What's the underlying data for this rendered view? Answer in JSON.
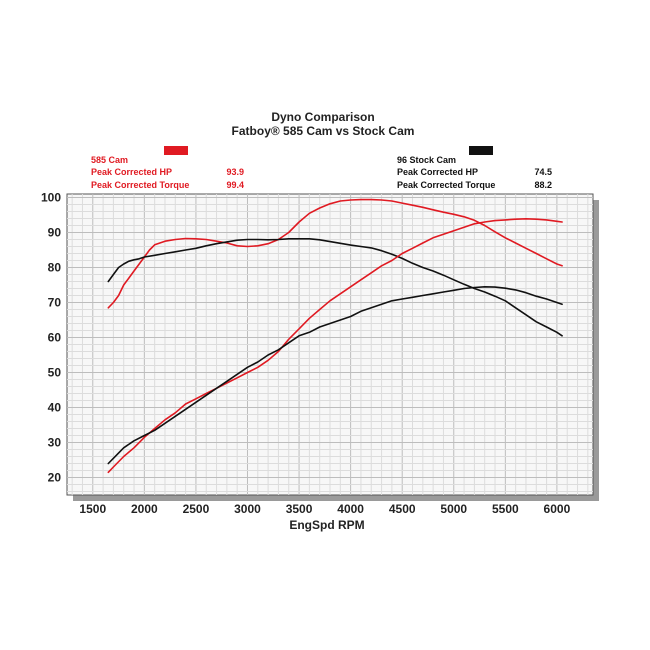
{
  "chart_data": {
    "type": "line",
    "title": "Dyno Comparison",
    "subtitle": "Fatboy® 585 Cam vs Stock Cam",
    "xlabel": "EngSpd RPM",
    "ylabel": "",
    "xlim": [
      1250,
      6350
    ],
    "ylim": [
      15,
      101
    ],
    "x_ticks": [
      1500,
      2000,
      2500,
      3000,
      3500,
      4000,
      4500,
      5000,
      5500,
      6000
    ],
    "y_ticks": [
      20,
      30,
      40,
      50,
      60,
      70,
      80,
      90,
      100
    ],
    "grid": true,
    "legend": {
      "cam": {
        "name": "585 Cam",
        "color": "#e01a22",
        "hp_label": "Peak Corrected HP",
        "hp_value": "93.9",
        "torque_label": "Peak Corrected Torque",
        "torque_value": "99.4"
      },
      "stock": {
        "name": "96 Stock Cam",
        "color": "#111111",
        "hp_label": "Peak Corrected HP",
        "hp_value": "74.5",
        "torque_label": "Peak Corrected Torque",
        "torque_value": "88.2"
      }
    },
    "series": [
      {
        "name": "585 Cam Torque",
        "color": "#e01a22",
        "x": [
          1650,
          1700,
          1750,
          1800,
          1850,
          1900,
          1950,
          2000,
          2050,
          2100,
          2200,
          2300,
          2400,
          2500,
          2600,
          2700,
          2800,
          2900,
          3000,
          3100,
          3200,
          3300,
          3400,
          3500,
          3600,
          3700,
          3800,
          3900,
          4000,
          4100,
          4200,
          4300,
          4400,
          4500,
          4600,
          4700,
          4800,
          4900,
          5000,
          5100,
          5200,
          5300,
          5400,
          5500,
          5600,
          5700,
          5800,
          5900,
          6000,
          6050
        ],
        "y": [
          68.5,
          70,
          72,
          75,
          77,
          79,
          81,
          83,
          85,
          86.5,
          87.5,
          88,
          88.3,
          88.2,
          88,
          87.5,
          87,
          86.2,
          86,
          86.2,
          86.8,
          88,
          90,
          93,
          95.5,
          97,
          98.2,
          99,
          99.3,
          99.4,
          99.4,
          99.3,
          99,
          98.4,
          97.8,
          97.2,
          96.5,
          95.8,
          95.2,
          94.5,
          93.5,
          92,
          90.2,
          88.5,
          87,
          85.5,
          84,
          82.5,
          81,
          80.5
        ]
      },
      {
        "name": "96 Stock Cam Torque",
        "color": "#111111",
        "x": [
          1650,
          1700,
          1750,
          1800,
          1850,
          1900,
          1950,
          2000,
          2100,
          2200,
          2300,
          2400,
          2500,
          2600,
          2700,
          2800,
          2900,
          3000,
          3100,
          3200,
          3300,
          3400,
          3500,
          3600,
          3700,
          3800,
          3900,
          4000,
          4100,
          4200,
          4300,
          4400,
          4500,
          4600,
          4700,
          4800,
          4900,
          5000,
          5100,
          5200,
          5300,
          5400,
          5500,
          5600,
          5700,
          5800,
          5900,
          6000,
          6050
        ],
        "y": [
          76,
          78,
          80,
          81,
          81.8,
          82.2,
          82.5,
          83,
          83.5,
          84,
          84.5,
          85,
          85.5,
          86.2,
          86.8,
          87.3,
          87.8,
          88,
          88,
          87.9,
          88,
          88.2,
          88.2,
          88.2,
          87.9,
          87.4,
          86.9,
          86.4,
          86,
          85.6,
          84.8,
          83.8,
          82.6,
          81.2,
          80,
          79,
          77.8,
          76.5,
          75.2,
          74,
          73,
          71.8,
          70.5,
          68.5,
          66.5,
          64.5,
          63,
          61.5,
          60.5
        ]
      },
      {
        "name": "585 Cam HP",
        "color": "#e01a22",
        "x": [
          1650,
          1700,
          1800,
          1900,
          2000,
          2100,
          2200,
          2300,
          2400,
          2500,
          2600,
          2700,
          2800,
          2900,
          3000,
          3100,
          3200,
          3300,
          3400,
          3500,
          3600,
          3700,
          3800,
          3900,
          4000,
          4100,
          4200,
          4300,
          4400,
          4500,
          4600,
          4700,
          4800,
          4900,
          5000,
          5100,
          5200,
          5300,
          5400,
          5500,
          5600,
          5700,
          5800,
          5900,
          6000,
          6050
        ],
        "y": [
          21.5,
          23,
          26,
          28.5,
          31.5,
          34,
          36.5,
          38.5,
          41,
          42.5,
          44,
          45.5,
          47,
          48.5,
          50,
          51.5,
          53.5,
          56,
          59.5,
          62.5,
          65.5,
          68,
          70.5,
          72.5,
          74.5,
          76.5,
          78.5,
          80.5,
          82,
          84,
          85.5,
          87,
          88.5,
          89.5,
          90.5,
          91.5,
          92.5,
          93,
          93.4,
          93.6,
          93.8,
          93.9,
          93.8,
          93.6,
          93.2,
          93
        ]
      },
      {
        "name": "96 Stock Cam HP",
        "color": "#111111",
        "x": [
          1650,
          1700,
          1800,
          1900,
          2000,
          2100,
          2200,
          2300,
          2400,
          2500,
          2600,
          2700,
          2800,
          2900,
          3000,
          3100,
          3200,
          3300,
          3400,
          3500,
          3600,
          3700,
          3800,
          3900,
          4000,
          4100,
          4200,
          4300,
          4400,
          4500,
          4600,
          4700,
          4800,
          4900,
          5000,
          5100,
          5200,
          5300,
          5400,
          5500,
          5600,
          5700,
          5800,
          5900,
          6000,
          6050
        ],
        "y": [
          24,
          25.5,
          28.5,
          30.5,
          32,
          33.5,
          35.5,
          37.5,
          39.5,
          41.5,
          43.5,
          45.5,
          47.5,
          49.5,
          51.5,
          53,
          55,
          56.5,
          58.5,
          60.5,
          61.5,
          63,
          64,
          65,
          66,
          67.5,
          68.5,
          69.5,
          70.5,
          71,
          71.5,
          72,
          72.5,
          73,
          73.5,
          74,
          74.3,
          74.5,
          74.4,
          74.1,
          73.6,
          72.8,
          71.8,
          71,
          70,
          69.5
        ]
      }
    ]
  }
}
